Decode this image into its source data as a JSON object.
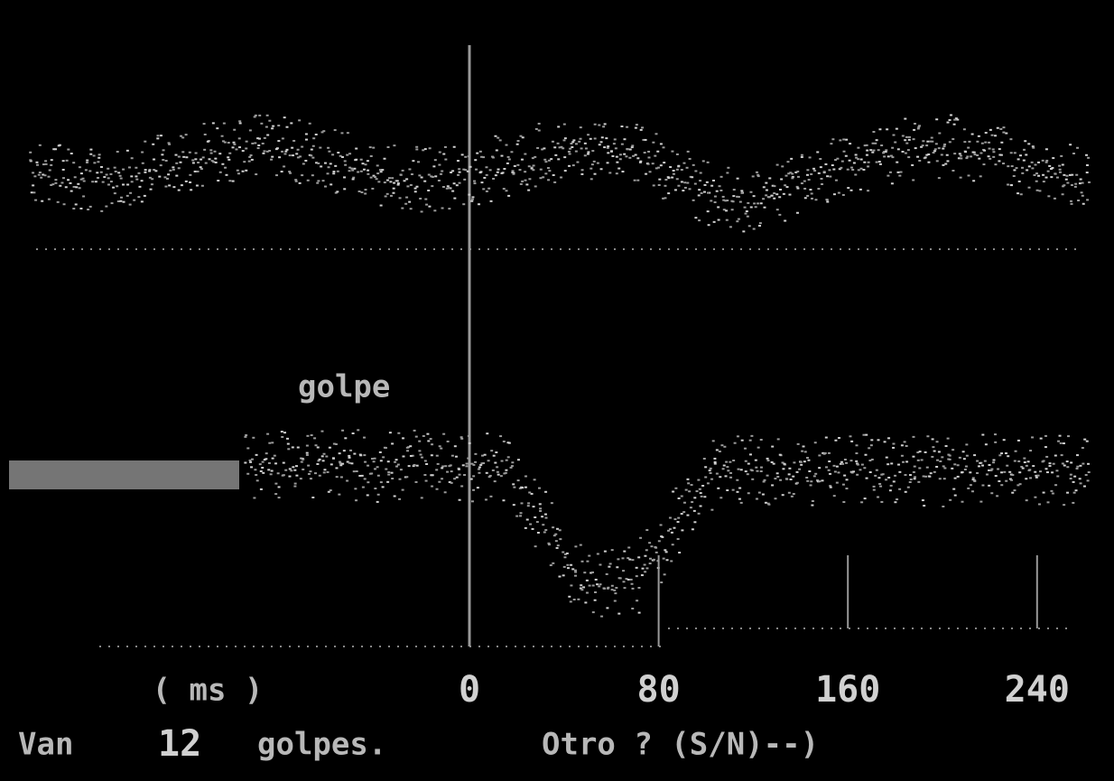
{
  "screen": {
    "marker_label": "golpe",
    "axis": {
      "unit": "( ms )",
      "ticks": [
        0,
        80,
        160,
        240
      ]
    },
    "status": {
      "prefix": "Van",
      "count": 12,
      "suffix": "golpes.",
      "prompt": "Otro ? (S/N)--)"
    }
  }
}
